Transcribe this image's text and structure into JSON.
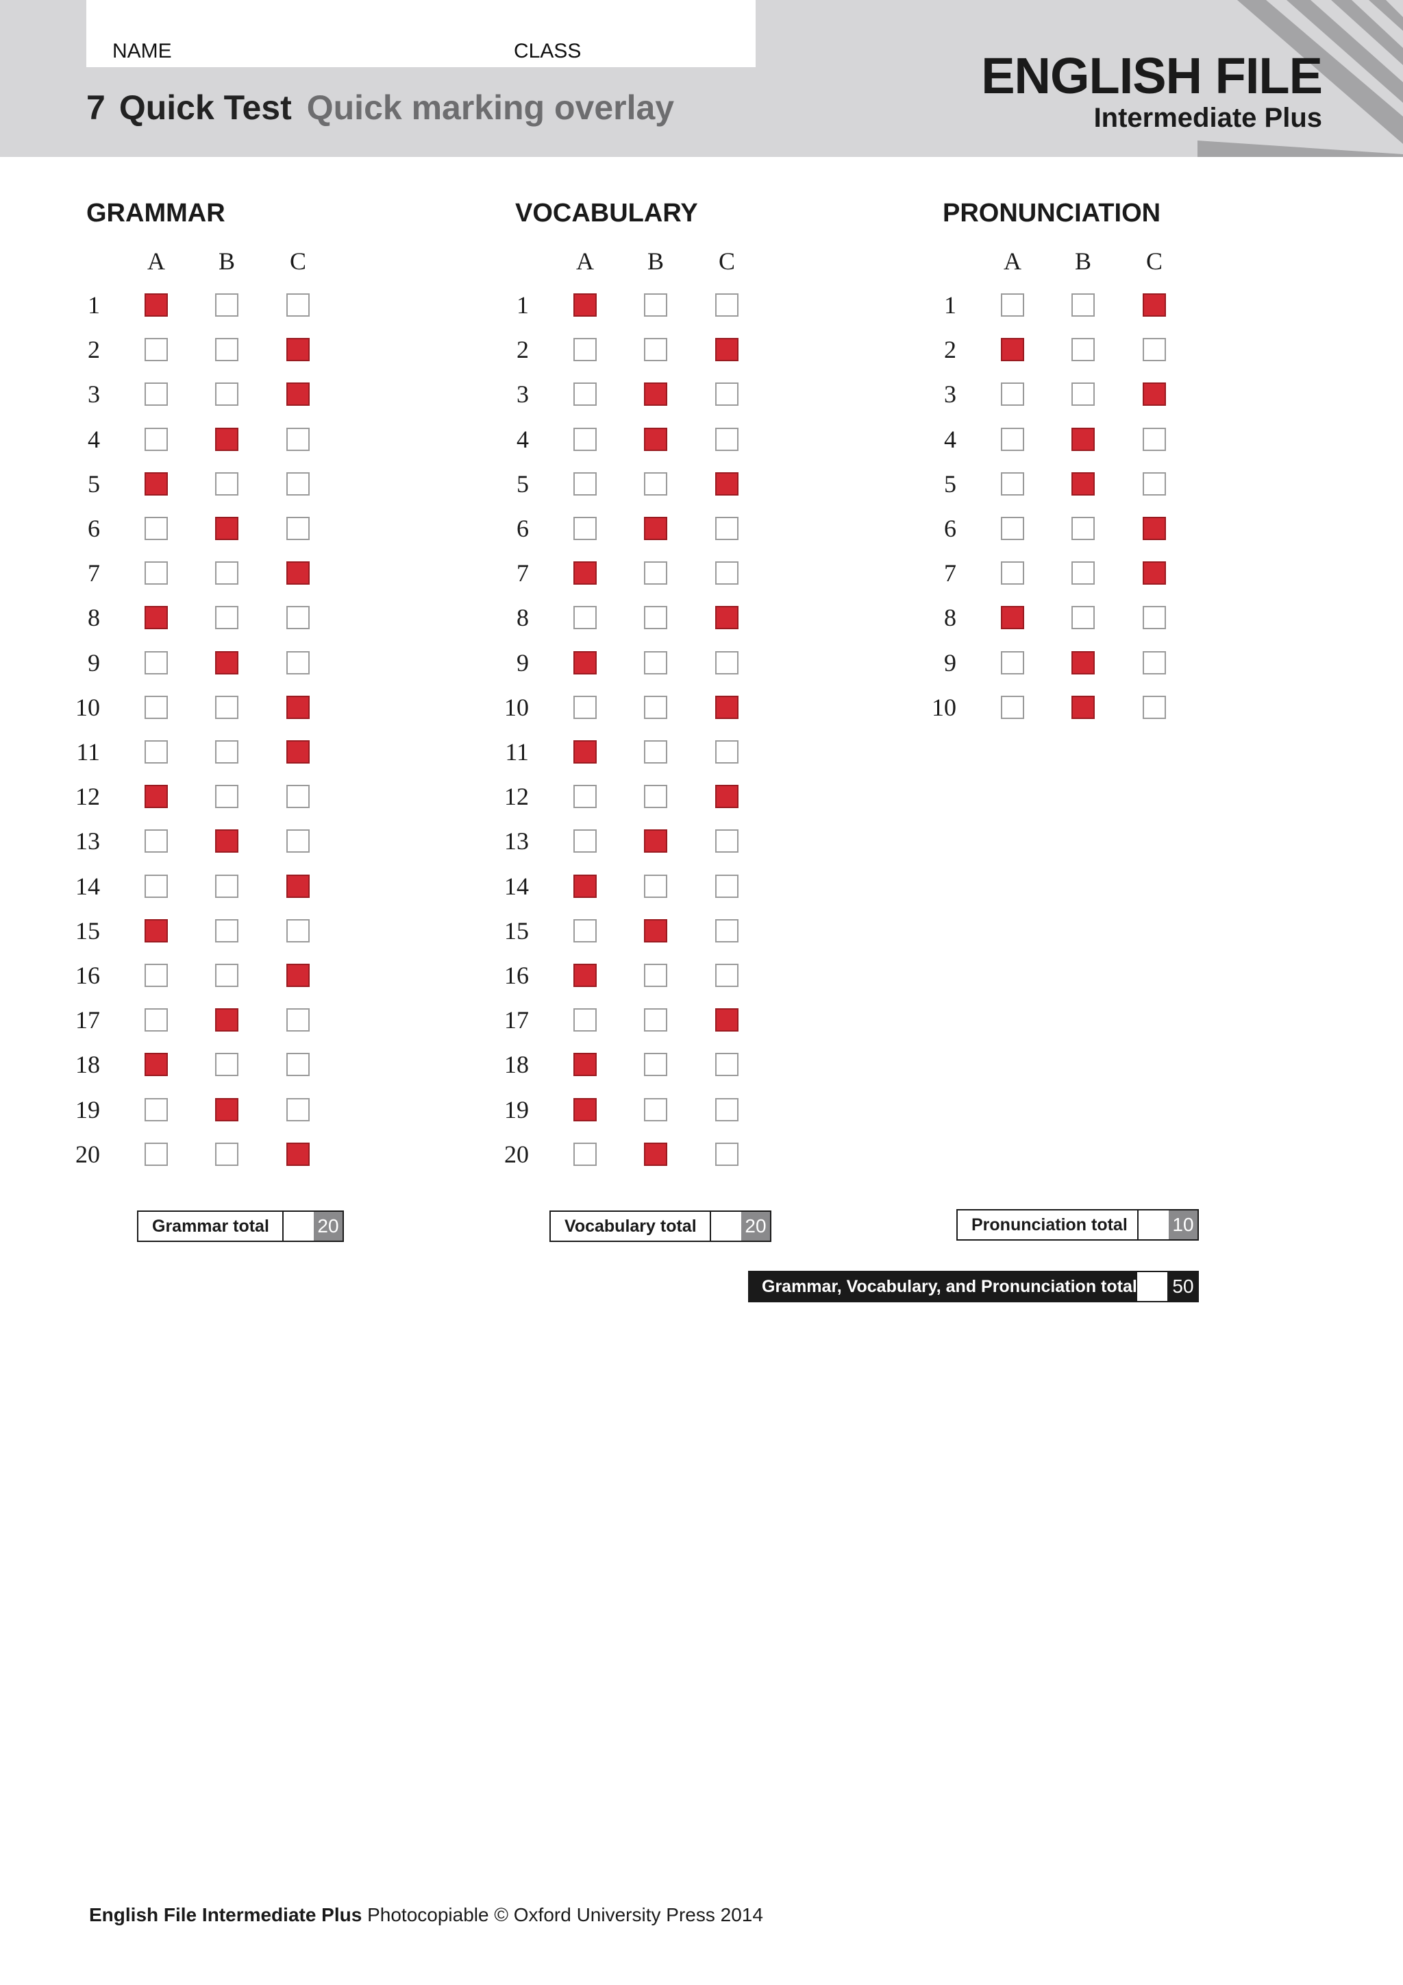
{
  "header": {
    "name_label": "NAME",
    "class_label": "CLASS",
    "test_number": "7",
    "test_title": "Quick Test",
    "test_subtitle": "Quick marking overlay",
    "brand_main": "ENGLISH FILE",
    "brand_sub": "Intermediate Plus"
  },
  "colors": {
    "mark_red": "#d22832",
    "header_grey": "#d6d6d8",
    "subtitle_grey": "#6d6d6f"
  },
  "sections": [
    {
      "title": "GRAMMAR",
      "columns": [
        "A",
        "B",
        "C"
      ],
      "answers": [
        "A",
        "C",
        "C",
        "B",
        "A",
        "B",
        "C",
        "A",
        "B",
        "C",
        "C",
        "A",
        "B",
        "C",
        "A",
        "C",
        "B",
        "A",
        "B",
        "C"
      ],
      "total_label": "Grammar total",
      "total_max": "20"
    },
    {
      "title": "VOCABULARY",
      "columns": [
        "A",
        "B",
        "C"
      ],
      "answers": [
        "A",
        "C",
        "B",
        "B",
        "C",
        "B",
        "A",
        "C",
        "A",
        "C",
        "A",
        "C",
        "B",
        "A",
        "B",
        "A",
        "C",
        "A",
        "A",
        "B"
      ],
      "total_label": "Vocabulary total",
      "total_max": "20"
    },
    {
      "title": "PRONUNCIATION",
      "columns": [
        "A",
        "B",
        "C"
      ],
      "answers": [
        "C",
        "A",
        "C",
        "B",
        "B",
        "C",
        "C",
        "A",
        "B",
        "B"
      ],
      "total_label": "Pronunciation total",
      "total_max": "10"
    }
  ],
  "grand_total": {
    "label": "Grammar, Vocabulary, and Pronunciation total",
    "max": "50"
  },
  "footer": {
    "bold": "English File Intermediate Plus",
    "text": " Photocopiable © Oxford University Press 2014"
  }
}
